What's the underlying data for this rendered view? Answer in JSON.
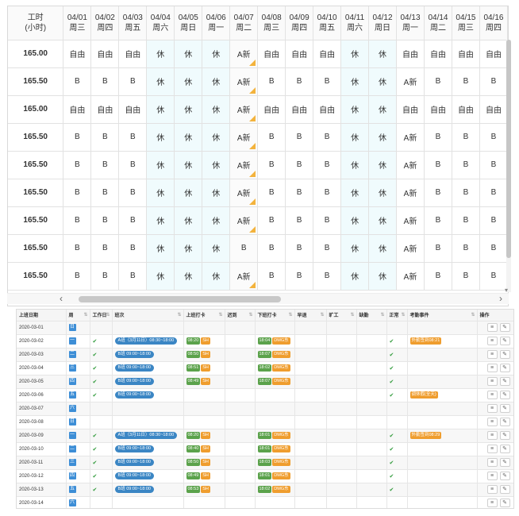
{
  "schedule": {
    "hours_header": {
      "line1": "工时",
      "line2": "(小时)"
    },
    "columns": [
      {
        "date": "04/01",
        "weekday": "周三",
        "weekend": false
      },
      {
        "date": "04/02",
        "weekday": "周四",
        "weekend": false
      },
      {
        "date": "04/03",
        "weekday": "周五",
        "weekend": false
      },
      {
        "date": "04/04",
        "weekday": "周六",
        "weekend": true
      },
      {
        "date": "04/05",
        "weekday": "周日",
        "weekend": true
      },
      {
        "date": "04/06",
        "weekday": "周一",
        "weekend": true
      },
      {
        "date": "04/07",
        "weekday": "周二",
        "weekend": false,
        "highlight": true
      },
      {
        "date": "04/08",
        "weekday": "周三",
        "weekend": false
      },
      {
        "date": "04/09",
        "weekday": "周四",
        "weekend": false
      },
      {
        "date": "04/10",
        "weekday": "周五",
        "weekend": false
      },
      {
        "date": "04/11",
        "weekday": "周六",
        "weekend": true
      },
      {
        "date": "04/12",
        "weekday": "周日",
        "weekend": true
      },
      {
        "date": "04/13",
        "weekday": "周一",
        "weekend": false
      },
      {
        "date": "04/14",
        "weekday": "周二",
        "weekend": false
      },
      {
        "date": "04/15",
        "weekday": "周三",
        "weekend": false
      },
      {
        "date": "04/16",
        "weekday": "周四",
        "weekend": false
      }
    ],
    "rows": [
      {
        "hours": "165.00",
        "cells": [
          "自由",
          "自由",
          "自由",
          "休",
          "休",
          "休",
          "A新",
          "自由",
          "自由",
          "自由",
          "休",
          "休",
          "自由",
          "自由",
          "自由",
          "自由"
        ],
        "flag_cols": [
          6
        ]
      },
      {
        "hours": "165.50",
        "cells": [
          "B",
          "B",
          "B",
          "休",
          "休",
          "休",
          "A新",
          "B",
          "B",
          "B",
          "休",
          "休",
          "A新",
          "B",
          "B",
          "B"
        ],
        "flag_cols": [
          6
        ]
      },
      {
        "hours": "165.00",
        "cells": [
          "自由",
          "自由",
          "自由",
          "休",
          "休",
          "休",
          "A新",
          "自由",
          "自由",
          "自由",
          "休",
          "休",
          "自由",
          "自由",
          "自由",
          "自由"
        ],
        "flag_cols": [
          6
        ]
      },
      {
        "hours": "165.50",
        "cells": [
          "B",
          "B",
          "B",
          "休",
          "休",
          "休",
          "A新",
          "B",
          "B",
          "B",
          "休",
          "休",
          "A新",
          "B",
          "B",
          "B"
        ],
        "flag_cols": [
          6
        ]
      },
      {
        "hours": "165.50",
        "cells": [
          "B",
          "B",
          "B",
          "休",
          "休",
          "休",
          "A新",
          "B",
          "B",
          "B",
          "休",
          "休",
          "A新",
          "B",
          "B",
          "B"
        ],
        "flag_cols": [
          6
        ]
      },
      {
        "hours": "165.50",
        "cells": [
          "B",
          "B",
          "B",
          "休",
          "休",
          "休",
          "A新",
          "B",
          "B",
          "B",
          "休",
          "休",
          "A新",
          "B",
          "B",
          "B"
        ],
        "flag_cols": [
          6
        ]
      },
      {
        "hours": "165.50",
        "cells": [
          "B",
          "B",
          "B",
          "休",
          "休",
          "休",
          "A新",
          "B",
          "B",
          "B",
          "休",
          "休",
          "A新",
          "B",
          "B",
          "B"
        ],
        "flag_cols": [
          6
        ]
      },
      {
        "hours": "165.50",
        "cells": [
          "B",
          "B",
          "B",
          "休",
          "休",
          "休",
          "B",
          "B",
          "B",
          "B",
          "休",
          "休",
          "A新",
          "B",
          "B",
          "B"
        ],
        "flag_cols": []
      },
      {
        "hours": "165.50",
        "cells": [
          "B",
          "B",
          "B",
          "休",
          "休",
          "休",
          "A新",
          "B",
          "B",
          "B",
          "休",
          "休",
          "A新",
          "B",
          "B",
          "B"
        ],
        "flag_cols": [
          6
        ]
      }
    ]
  },
  "attendance": {
    "headers": [
      "上班日期",
      "周",
      "工作日",
      "班次",
      "上班打卡",
      "迟到",
      "下班打卡",
      "早退",
      "旷工",
      "缺勤",
      "正常",
      "考勤事件",
      "操作"
    ],
    "rows": [
      {
        "date": "2020-03-01",
        "wd": "日",
        "work": false,
        "shift": "",
        "in_time": "",
        "in_tag": "",
        "out_time": "",
        "out_tag": "",
        "normal": false,
        "event": ""
      },
      {
        "date": "2020-03-02",
        "wd": "一",
        "work": true,
        "shift": "A班（3月11日）08:30~18:00",
        "in_time": "08:20",
        "in_tag": "SH",
        "out_time": "18:04",
        "out_tag": "DMG东",
        "normal": true,
        "event": "外勤签到08:21"
      },
      {
        "date": "2020-03-03",
        "wd": "二",
        "work": true,
        "shift": "B班 09:00~18:00",
        "in_time": "08:50",
        "in_tag": "SH",
        "out_time": "18:07",
        "out_tag": "DMG东",
        "normal": true,
        "event": ""
      },
      {
        "date": "2020-03-04",
        "wd": "三",
        "work": true,
        "shift": "B班 09:00~18:00",
        "in_time": "08:51",
        "in_tag": "SH",
        "out_time": "18:02",
        "out_tag": "DMG东",
        "normal": true,
        "event": ""
      },
      {
        "date": "2020-03-05",
        "wd": "四",
        "work": true,
        "shift": "B班 09:00~18:00",
        "in_time": "08:49",
        "in_tag": "SH",
        "out_time": "18:07",
        "out_tag": "DMG东",
        "normal": true,
        "event": ""
      },
      {
        "date": "2020-03-06",
        "wd": "五",
        "work": true,
        "shift": "B班 09:00~18:00",
        "in_time": "",
        "in_tag": "",
        "out_time": "",
        "out_tag": "",
        "normal": true,
        "event": "调休假(全天)"
      },
      {
        "date": "2020-03-07",
        "wd": "六",
        "work": false,
        "shift": "",
        "in_time": "",
        "in_tag": "",
        "out_time": "",
        "out_tag": "",
        "normal": false,
        "event": ""
      },
      {
        "date": "2020-03-08",
        "wd": "日",
        "work": false,
        "shift": "",
        "in_time": "",
        "in_tag": "",
        "out_time": "",
        "out_tag": "",
        "normal": false,
        "event": ""
      },
      {
        "date": "2020-03-09",
        "wd": "一",
        "work": true,
        "shift": "A班（3月11日）08:30~18:00",
        "in_time": "08:20",
        "in_tag": "SH",
        "out_time": "18:01",
        "out_tag": "DMG东",
        "normal": true,
        "event": "外勤签到08:29"
      },
      {
        "date": "2020-03-10",
        "wd": "二",
        "work": true,
        "shift": "B班 09:00~18:00",
        "in_time": "08:40",
        "in_tag": "SH",
        "out_time": "18:01",
        "out_tag": "DMG东",
        "normal": true,
        "event": ""
      },
      {
        "date": "2020-03-11",
        "wd": "三",
        "work": true,
        "shift": "B班 09:00~18:00",
        "in_time": "08:50",
        "in_tag": "SH",
        "out_time": "18:03",
        "out_tag": "DMG东",
        "normal": true,
        "event": ""
      },
      {
        "date": "2020-03-12",
        "wd": "四",
        "work": true,
        "shift": "B班 09:00~18:00",
        "in_time": "08:49",
        "in_tag": "SH",
        "out_time": "18:01",
        "out_tag": "DMG东",
        "normal": true,
        "event": ""
      },
      {
        "date": "2020-03-13",
        "wd": "五",
        "work": true,
        "shift": "B班 09:00~18:00",
        "in_time": "08:53",
        "in_tag": "SH",
        "out_time": "18:02",
        "out_tag": "DMG东",
        "normal": true,
        "event": ""
      },
      {
        "date": "2020-03-14",
        "wd": "六",
        "work": false,
        "shift": "",
        "in_time": "",
        "in_tag": "",
        "out_time": "",
        "out_tag": "",
        "normal": false,
        "event": ""
      }
    ],
    "check_glyph": "✔",
    "ops": {
      "detail_icon": "list-icon",
      "edit_icon": "edit-icon"
    }
  },
  "scroll": {
    "left_arrow": "‹",
    "right_arrow": "›",
    "down_arrow": "▾"
  },
  "colors": {
    "weekend_bg": "#f0fbfd",
    "flag": "#f3b33d",
    "weekday_badge": "#3d8ed6",
    "shift_badge": "#3b86c4",
    "clock_badge": "#5ba24b",
    "tag_badge": "#ef9d2e",
    "check": "#2f9a3a"
  }
}
